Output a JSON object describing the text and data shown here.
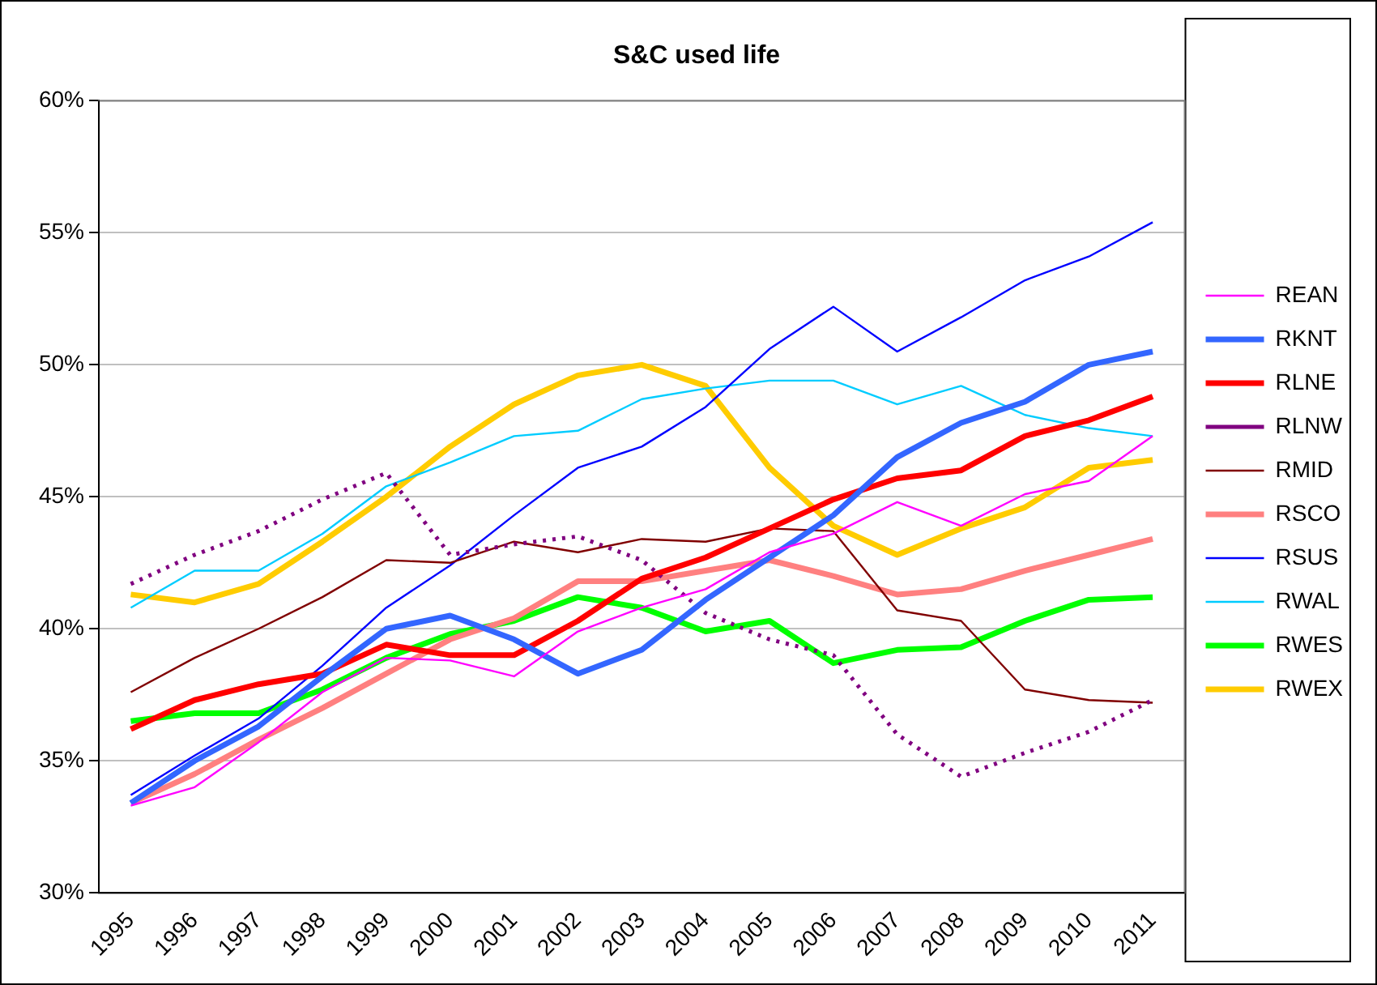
{
  "chart_data": {
    "type": "line",
    "title": "S&C used life",
    "categories": [
      "1995",
      "1996",
      "1997",
      "1998",
      "1999",
      "2000",
      "2001",
      "2002",
      "2003",
      "2004",
      "2005",
      "2006",
      "2007",
      "2008",
      "2009",
      "2010",
      "2011"
    ],
    "ylim": [
      30,
      60
    ],
    "yticks": [
      {
        "value": 30,
        "label": "30%"
      },
      {
        "value": 35,
        "label": "35%"
      },
      {
        "value": 40,
        "label": "40%"
      },
      {
        "value": 45,
        "label": "45%"
      },
      {
        "value": 50,
        "label": "50%"
      },
      {
        "value": 55,
        "label": "55%"
      },
      {
        "value": 60,
        "label": "60%"
      }
    ],
    "grid": "y",
    "legend": "right",
    "marker": "none",
    "series": [
      {
        "name": "REAN",
        "color": "#ff00ff",
        "values": [
          33.3,
          34.0,
          35.7,
          37.6,
          38.9,
          38.8,
          38.2,
          39.9,
          40.8,
          41.5,
          42.9,
          43.6,
          44.8,
          43.9,
          45.1,
          45.6,
          47.3
        ]
      },
      {
        "name": "RKNT",
        "color": "#3366ff",
        "values": [
          33.4,
          35.0,
          36.3,
          38.2,
          40.0,
          40.5,
          39.6,
          38.3,
          39.2,
          41.1,
          42.7,
          44.3,
          46.5,
          47.8,
          48.6,
          50.0,
          50.5
        ]
      },
      {
        "name": "RLNE",
        "color": "#ff0000",
        "values": [
          36.2,
          37.3,
          37.9,
          38.3,
          39.4,
          39.0,
          39.0,
          40.3,
          41.9,
          42.7,
          43.8,
          44.9,
          45.7,
          46.0,
          47.3,
          47.9,
          48.8
        ]
      },
      {
        "name": "RLNW",
        "color": "#800080",
        "line_style": "dotted",
        "values": [
          41.7,
          42.8,
          43.7,
          44.9,
          45.9,
          42.8,
          43.2,
          43.5,
          42.6,
          40.6,
          39.6,
          39.0,
          36.0,
          34.4,
          35.3,
          36.1,
          37.3
        ]
      },
      {
        "name": "RMID",
        "color": "#800000",
        "values": [
          37.6,
          38.9,
          40.0,
          41.2,
          42.6,
          42.5,
          43.3,
          42.9,
          43.4,
          43.3,
          43.8,
          43.7,
          40.7,
          40.3,
          37.7,
          37.3,
          37.2
        ]
      },
      {
        "name": "RSCO",
        "color": "#ff8080",
        "values": [
          33.4,
          34.5,
          35.8,
          37.0,
          38.3,
          39.6,
          40.4,
          41.8,
          41.8,
          42.2,
          42.6,
          42.0,
          41.3,
          41.5,
          42.2,
          42.8,
          43.4
        ]
      },
      {
        "name": "RSUS",
        "color": "#0000ff",
        "values": [
          33.7,
          35.2,
          36.6,
          38.6,
          40.8,
          42.4,
          44.3,
          46.1,
          46.9,
          48.4,
          50.6,
          52.2,
          50.5,
          51.8,
          53.2,
          54.1,
          55.4
        ]
      },
      {
        "name": "RWAL",
        "color": "#00ccff",
        "values": [
          40.8,
          42.2,
          42.2,
          43.6,
          45.4,
          46.3,
          47.3,
          47.5,
          48.7,
          49.1,
          49.4,
          49.4,
          48.5,
          49.2,
          48.1,
          47.6,
          47.3
        ]
      },
      {
        "name": "RWES",
        "color": "#00ff00",
        "values": [
          36.5,
          36.8,
          36.8,
          37.7,
          38.9,
          39.8,
          40.3,
          41.2,
          40.8,
          39.9,
          40.3,
          38.7,
          39.2,
          39.3,
          40.3,
          41.1,
          41.2
        ]
      },
      {
        "name": "RWEX",
        "color": "#ffcc00",
        "values": [
          41.3,
          41.0,
          41.7,
          43.3,
          45.0,
          46.9,
          48.5,
          49.6,
          50.0,
          49.2,
          46.1,
          43.9,
          42.8,
          43.8,
          44.6,
          46.1,
          46.4
        ]
      }
    ]
  }
}
